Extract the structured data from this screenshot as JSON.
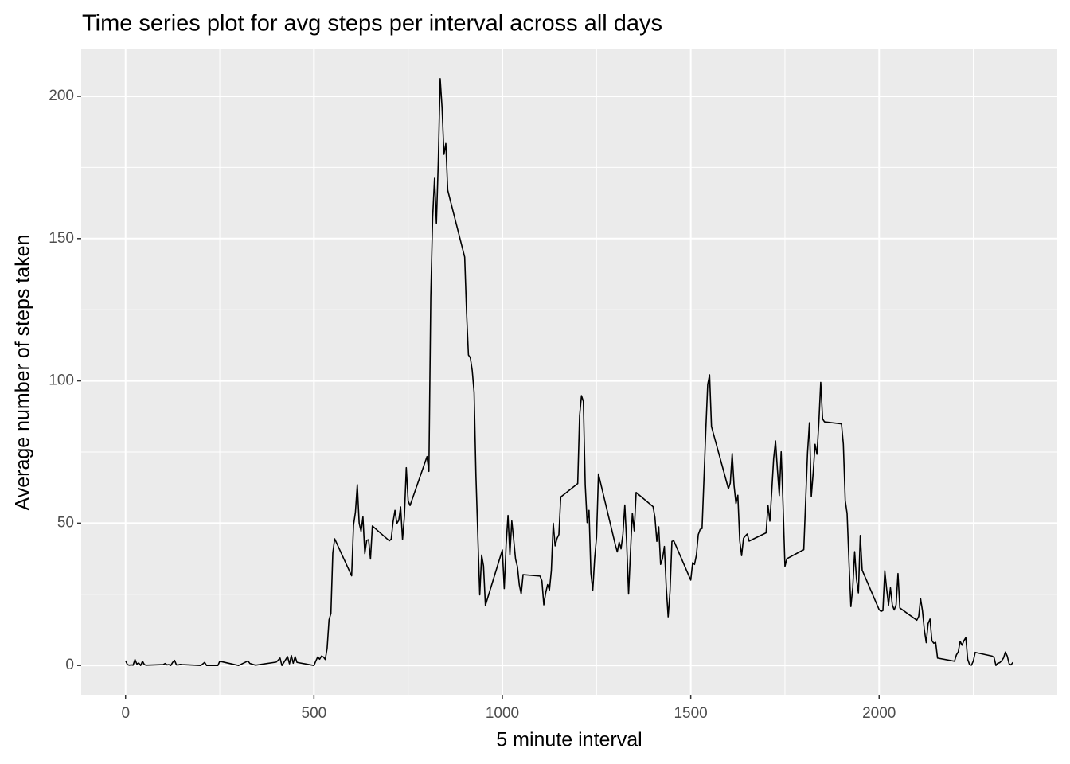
{
  "chart_data": {
    "type": "line",
    "title": "Time series plot for avg steps per interval across all days",
    "x_label": "5 minute interval",
    "y_label": "Average number of steps taken",
    "color": "#000000",
    "grid": true,
    "xlim": [
      -117.75,
      2472.75
    ],
    "ylim": [
      -10.3,
      216.5
    ],
    "xticks": [
      0,
      500,
      1000,
      1500,
      2000
    ],
    "yticks": [
      0,
      50,
      100,
      150,
      200
    ],
    "x": [
      0,
      5,
      10,
      15,
      20,
      25,
      30,
      35,
      40,
      45,
      50,
      55,
      100,
      105,
      110,
      115,
      120,
      125,
      130,
      135,
      140,
      145,
      150,
      200,
      210,
      215,
      220,
      230,
      245,
      250,
      300,
      325,
      330,
      345,
      400,
      410,
      415,
      430,
      435,
      440,
      445,
      450,
      455,
      500,
      505,
      510,
      515,
      520,
      525,
      530,
      535,
      540,
      545,
      550,
      555,
      600,
      605,
      610,
      615,
      620,
      625,
      630,
      635,
      640,
      645,
      650,
      655,
      700,
      705,
      710,
      715,
      720,
      725,
      730,
      735,
      740,
      745,
      750,
      755,
      800,
      805,
      810,
      815,
      820,
      825,
      830,
      835,
      840,
      845,
      850,
      855,
      900,
      905,
      910,
      915,
      920,
      925,
      930,
      935,
      940,
      945,
      950,
      955,
      1000,
      1005,
      1010,
      1015,
      1020,
      1025,
      1030,
      1035,
      1040,
      1045,
      1050,
      1055,
      1100,
      1105,
      1110,
      1115,
      1120,
      1125,
      1130,
      1135,
      1140,
      1145,
      1150,
      1155,
      1200,
      1205,
      1210,
      1215,
      1220,
      1225,
      1230,
      1235,
      1240,
      1245,
      1250,
      1255,
      1300,
      1305,
      1310,
      1315,
      1320,
      1325,
      1330,
      1335,
      1340,
      1345,
      1350,
      1355,
      1400,
      1405,
      1410,
      1415,
      1420,
      1425,
      1430,
      1435,
      1440,
      1445,
      1450,
      1455,
      1500,
      1505,
      1510,
      1515,
      1520,
      1525,
      1530,
      1535,
      1540,
      1545,
      1550,
      1555,
      1600,
      1605,
      1610,
      1615,
      1620,
      1625,
      1630,
      1635,
      1640,
      1645,
      1650,
      1655,
      1700,
      1705,
      1710,
      1715,
      1720,
      1725,
      1730,
      1735,
      1740,
      1745,
      1750,
      1755,
      1800,
      1805,
      1810,
      1815,
      1820,
      1825,
      1830,
      1835,
      1840,
      1845,
      1850,
      1855,
      1900,
      1905,
      1910,
      1915,
      1920,
      1925,
      1930,
      1935,
      1940,
      1945,
      1950,
      1955,
      2000,
      2005,
      2010,
      2015,
      2020,
      2025,
      2030,
      2035,
      2040,
      2045,
      2050,
      2055,
      2100,
      2105,
      2110,
      2115,
      2120,
      2125,
      2130,
      2135,
      2140,
      2145,
      2150,
      2155,
      2200,
      2205,
      2210,
      2215,
      2220,
      2225,
      2230,
      2235,
      2240,
      2245,
      2250,
      2255,
      2300,
      2305,
      2310,
      2315,
      2320,
      2325,
      2330,
      2335,
      2340,
      2345,
      2350,
      2355
    ],
    "series": [
      {
        "name": "steps",
        "color": "#000000",
        "values": [
          1.7,
          0.3,
          0.1,
          0.2,
          0.1,
          2.1,
          0.5,
          0.9,
          0,
          1.5,
          0.3,
          0.1,
          0.3,
          0.7,
          0.2,
          0.3,
          0,
          1.1,
          1.8,
          0.2,
          0.2,
          0.4,
          0.3,
          0,
          1.1,
          0,
          0,
          0,
          0,
          1.5,
          0,
          1.6,
          0.7,
          0.1,
          1.2,
          2.6,
          0,
          3.1,
          0.6,
          3.5,
          0.8,
          3.1,
          1.1,
          0,
          1.6,
          3.0,
          2.2,
          3.3,
          3.0,
          2.1,
          6.1,
          16.0,
          18.3,
          39.5,
          44.5,
          31.5,
          49.3,
          53.8,
          63.5,
          50.0,
          47.1,
          52.2,
          39.3,
          44.0,
          44.2,
          37.4,
          49.0,
          43.8,
          44.4,
          50.5,
          54.5,
          49.9,
          51.0,
          55.7,
          44.3,
          52.3,
          69.5,
          57.8,
          56.2,
          73.4,
          68.2,
          129.4,
          157.5,
          171.2,
          155.4,
          177.3,
          206.2,
          195.9,
          179.6,
          183.4,
          167.0,
          143.5,
          124.0,
          109.1,
          108.1,
          103.7,
          95.97,
          66.2,
          45.2,
          24.8,
          38.8,
          34.98,
          21.1,
          40.6,
          27.0,
          42.4,
          52.7,
          38.9,
          50.8,
          44.3,
          37.4,
          34.7,
          28.3,
          25.1,
          31.9,
          31.4,
          29.7,
          21.3,
          25.5,
          28.4,
          26.5,
          33.4,
          49.98,
          42.0,
          44.6,
          46.0,
          59.2,
          63.9,
          87.7,
          94.8,
          92.8,
          63.4,
          50.2,
          54.5,
          32.4,
          26.5,
          37.7,
          45.1,
          67.3,
          42.3,
          39.9,
          43.3,
          40.98,
          46.2,
          56.4,
          42.8,
          25.1,
          39.96,
          53.5,
          47.3,
          60.8,
          55.8,
          51.96,
          43.6,
          48.7,
          35.5,
          37.5,
          41.8,
          27.5,
          17.1,
          26.1,
          43.6,
          43.8,
          30.0,
          36.1,
          35.5,
          38.8,
          45.96,
          47.8,
          48.1,
          65.3,
          82.9,
          98.7,
          102.1,
          83.96,
          62.1,
          64.1,
          74.5,
          63.2,
          56.9,
          59.8,
          43.9,
          38.6,
          44.7,
          45.5,
          46.2,
          43.7,
          46.6,
          56.3,
          50.7,
          61.2,
          72.7,
          78.9,
          68.9,
          59.7,
          75.1,
          56.5,
          34.8,
          37.5,
          40.7,
          58.0,
          74.7,
          85.3,
          59.3,
          67.8,
          77.7,
          74.2,
          85.3,
          99.5,
          86.6,
          85.6,
          84.9,
          77.8,
          58.0,
          53.4,
          36.3,
          20.7,
          27.4,
          40.0,
          30.2,
          25.5,
          45.7,
          33.5,
          19.6,
          19.0,
          19.3,
          33.3,
          26.8,
          21.2,
          27.3,
          21.3,
          19.5,
          21.3,
          32.3,
          20.2,
          15.9,
          17.2,
          23.5,
          19.2,
          12.5,
          8.0,
          14.7,
          16.3,
          8.7,
          7.8,
          8.1,
          2.6,
          1.5,
          3.7,
          4.8,
          8.5,
          7.1,
          8.7,
          9.8,
          2.2,
          0.3,
          0.1,
          1.6,
          4.6,
          3.3,
          2.8,
          0,
          0.8,
          1.0,
          1.6,
          2.6,
          4.7,
          3.3,
          0.6,
          0.2,
          1.1
        ]
      }
    ]
  }
}
